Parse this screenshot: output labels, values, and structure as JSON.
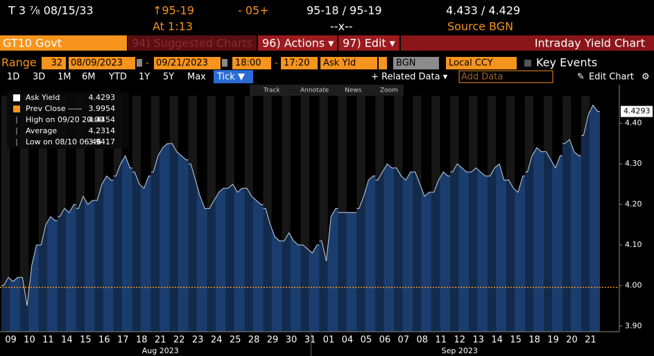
{
  "header": {
    "security": "T 3 ⅞ 08/15/33",
    "price": "↑95-19",
    "change": "- 05+",
    "bid_ask": "95-18 / 95-19",
    "yield_bid_ask": "4.433 / 4.429",
    "time": "At 1:13",
    "size": "--x--",
    "source": "Source BGN"
  },
  "toolbar": {
    "ticker": "GT10 Govt",
    "suggested": "94) Suggested Charts",
    "actions": "96) Actions ▾",
    "edit": "97) Edit ▾",
    "title": "Intraday Yield Chart"
  },
  "range_bar": {
    "label": "Range",
    "days": "32",
    "start": "08/09/2023",
    "end": "09/21/2023",
    "from_time": "18:00",
    "to_time": "17:20",
    "field": "Ask Yld",
    "source": "BGN",
    "currency": "Local CCY",
    "events": "Key Events"
  },
  "period_bar": {
    "periods": [
      "1D",
      "3D",
      "1M",
      "6M",
      "YTD",
      "1Y",
      "5Y",
      "Max"
    ],
    "tick": "Tick ▼",
    "related": "+ Related Data ▾",
    "add": "Add Data",
    "edit": "Edit Chart"
  },
  "chart_tools": [
    "Track",
    "Annotate",
    "News",
    "Zoom"
  ],
  "chart_data": {
    "type": "area",
    "color": "#1b3d6e",
    "line_color": "#c9d3e3",
    "prev_close_color": "#f7941d",
    "legend": [
      {
        "name": "Ask Yield",
        "value": 4.4293,
        "color": "#ffffff"
      },
      {
        "name": "Prev Close -----",
        "value": 3.9954,
        "color": "#f7941d"
      },
      {
        "name": "High on 09/20 20:00",
        "value": 4.4454
      },
      {
        "name": "Average",
        "value": 4.2314
      },
      {
        "name": "Low on 08/10 06:46",
        "value": 3.9417
      }
    ],
    "ylim": [
      3.886,
      4.468
    ],
    "yticks": [
      {
        "value": 3.9,
        "label": "3.90"
      },
      {
        "value": 4.0,
        "label": "4.00"
      },
      {
        "value": 4.1,
        "label": "4.10"
      },
      {
        "value": 4.2,
        "label": "4.20"
      },
      {
        "value": 4.3,
        "label": "4.30"
      },
      {
        "value": 4.4,
        "label": "4.40"
      }
    ],
    "months": [
      {
        "label": "Aug 2023",
        "days": [
          {
            "label": "09",
            "values": [
              4.0,
              4.02,
              4.01,
              4.02
            ]
          },
          {
            "label": "10",
            "values": [
              4.02,
              3.95,
              4.05,
              4.1
            ]
          },
          {
            "label": "11",
            "values": [
              4.1,
              4.15,
              4.17,
              4.16
            ]
          },
          {
            "label": "14",
            "values": [
              4.17,
              4.19,
              4.18,
              4.2
            ]
          },
          {
            "label": "15",
            "values": [
              4.19,
              4.22,
              4.2,
              4.21
            ]
          },
          {
            "label": "16",
            "values": [
              4.21,
              4.25,
              4.27,
              4.26
            ]
          },
          {
            "label": "17",
            "values": [
              4.27,
              4.3,
              4.32,
              4.29
            ]
          },
          {
            "label": "18",
            "values": [
              4.28,
              4.25,
              4.24,
              4.27
            ]
          },
          {
            "label": "21",
            "values": [
              4.28,
              4.32,
              4.34,
              4.35
            ]
          },
          {
            "label": "22",
            "values": [
              4.35,
              4.33,
              4.32,
              4.31
            ]
          },
          {
            "label": "23",
            "values": [
              4.3,
              4.26,
              4.22,
              4.19
            ]
          },
          {
            "label": "24",
            "values": [
              4.19,
              4.21,
              4.23,
              4.24
            ]
          },
          {
            "label": "25",
            "values": [
              4.24,
              4.25,
              4.23,
              4.24
            ]
          },
          {
            "label": "28",
            "values": [
              4.24,
              4.22,
              4.21,
              4.2
            ]
          },
          {
            "label": "29",
            "values": [
              4.19,
              4.15,
              4.12,
              4.11
            ]
          },
          {
            "label": "30",
            "values": [
              4.11,
              4.13,
              4.11,
              4.1
            ]
          },
          {
            "label": "31",
            "values": [
              4.1,
              4.09,
              4.08,
              4.1
            ]
          }
        ]
      },
      {
        "label": "Sep 2023",
        "days": [
          {
            "label": "01",
            "values": [
              4.11,
              4.06,
              4.17,
              4.19
            ]
          },
          {
            "label": "04",
            "values": [
              4.18,
              4.18,
              4.18,
              4.18
            ]
          },
          {
            "label": "05",
            "values": [
              4.19,
              4.22,
              4.26,
              4.27
            ]
          },
          {
            "label": "06",
            "values": [
              4.26,
              4.28,
              4.3,
              4.29
            ]
          },
          {
            "label": "07",
            "values": [
              4.29,
              4.27,
              4.26,
              4.28
            ]
          },
          {
            "label": "08",
            "values": [
              4.28,
              4.25,
              4.22,
              4.23
            ]
          },
          {
            "label": "11",
            "values": [
              4.23,
              4.26,
              4.28,
              4.27
            ]
          },
          {
            "label": "12",
            "values": [
              4.28,
              4.3,
              4.29,
              4.28
            ]
          },
          {
            "label": "13",
            "values": [
              4.28,
              4.29,
              4.28,
              4.27
            ]
          },
          {
            "label": "14",
            "values": [
              4.27,
              4.29,
              4.3,
              4.26
            ]
          },
          {
            "label": "15",
            "values": [
              4.26,
              4.24,
              4.23,
              4.27
            ]
          },
          {
            "label": "18",
            "values": [
              4.28,
              4.32,
              4.34,
              4.33
            ]
          },
          {
            "label": "19",
            "values": [
              4.33,
              4.31,
              4.29,
              4.32
            ]
          },
          {
            "label": "20",
            "values": [
              4.35,
              4.36,
              4.33,
              4.32
            ]
          },
          {
            "label": "21",
            "values": [
              4.37,
              4.42,
              4.445,
              4.4293
            ]
          }
        ]
      }
    ]
  }
}
